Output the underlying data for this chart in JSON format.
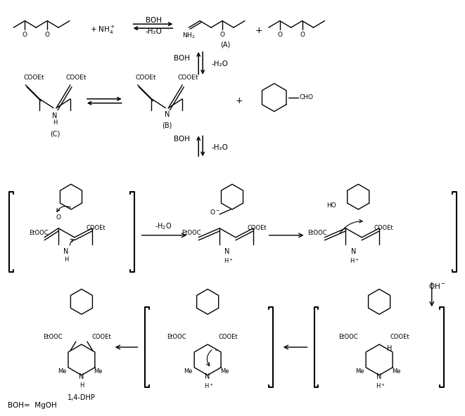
{
  "bg_color": "#ffffff",
  "footer_text": "BOH=  MgOH",
  "label_A": "(A)",
  "label_B": "(B)",
  "label_C": "(C)",
  "label_14DHP": "1,4-DHP",
  "boh_text": "BOH",
  "minus_h2o": "-H₂O",
  "nh4_text": "+ NH₄⁺",
  "oh_minus": "↓ OH⁻"
}
